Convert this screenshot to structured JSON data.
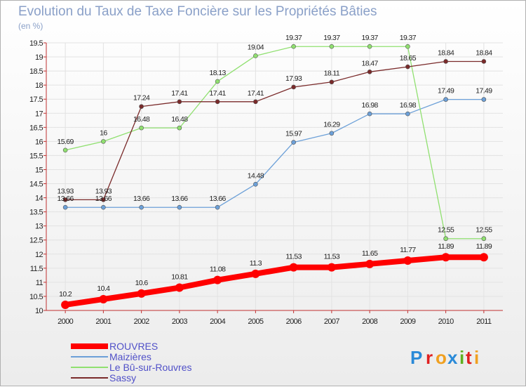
{
  "chart_data": {
    "type": "line",
    "title": "Evolution du Taux de Taxe Foncière sur les Propriétés Bâties",
    "subtitle": "(en %)",
    "x": [
      "2000",
      "2001",
      "2002",
      "2003",
      "2004",
      "2005",
      "2006",
      "2007",
      "2008",
      "2009",
      "2010",
      "2011"
    ],
    "ylim": [
      10,
      19.5
    ],
    "yticks": [
      "10",
      "10.5",
      "11",
      "11.5",
      "12",
      "12.5",
      "13",
      "13.5",
      "14",
      "14.5",
      "15",
      "15.5",
      "16",
      "16.5",
      "17",
      "17.5",
      "18",
      "18.5",
      "19",
      "19.5"
    ],
    "grid": true,
    "legend_position": "bottom-left",
    "series": [
      {
        "name": "ROUVRES",
        "color": "#ff0000",
        "values": [
          10.2,
          10.4,
          10.6,
          10.81,
          11.08,
          11.3,
          11.53,
          11.53,
          11.65,
          11.77,
          11.89,
          11.89
        ],
        "labels": [
          "10.2",
          "10.4",
          "10.6",
          "10.81",
          "11.08",
          "11.3",
          "11.53",
          "11.53",
          "11.65",
          "11.77",
          "11.89",
          "11.89"
        ]
      },
      {
        "name": "Maizières",
        "color": "#6ca0d8",
        "values": [
          13.66,
          13.66,
          13.66,
          13.66,
          13.66,
          14.48,
          15.97,
          16.29,
          16.98,
          16.98,
          17.49,
          17.49
        ],
        "labels": [
          "13.66",
          "13.66",
          "13.66",
          "13.66",
          "13.66",
          "14.48",
          "15.97",
          "16.29",
          "16.98",
          "16.98",
          "17.49",
          "17.49"
        ]
      },
      {
        "name": "Le Bû-sur-Rouvres",
        "color": "#90e070",
        "values": [
          15.69,
          16,
          16.48,
          16.48,
          18.13,
          19.04,
          19.37,
          19.37,
          19.37,
          19.37,
          12.55,
          12.55
        ],
        "labels": [
          "15.69",
          "16",
          "16.48",
          "16.48",
          "18.13",
          "19.04",
          "19.37",
          "19.37",
          "19.37",
          "19.37",
          "12.55",
          "12.55"
        ]
      },
      {
        "name": "Sassy",
        "color": "#7a2a2a",
        "values": [
          13.93,
          13.93,
          17.24,
          17.41,
          17.41,
          17.41,
          17.93,
          18.11,
          18.47,
          18.65,
          18.84,
          18.84
        ],
        "labels": [
          "13.93",
          "13.93",
          "17.24",
          "17.41",
          "17.41",
          "17.41",
          "17.93",
          "18.11",
          "18.47",
          "18.65",
          "18.84",
          "18.84"
        ]
      }
    ]
  },
  "logo": {
    "text": "Proxiti",
    "letters": [
      "P",
      "r",
      "o",
      "x",
      "i",
      "t",
      "i"
    ],
    "colors": [
      "#2a8ad8",
      "#e02020",
      "#f0a020",
      "#2a8ad8",
      "#60b020",
      "#e02020",
      "#f0a020"
    ]
  }
}
